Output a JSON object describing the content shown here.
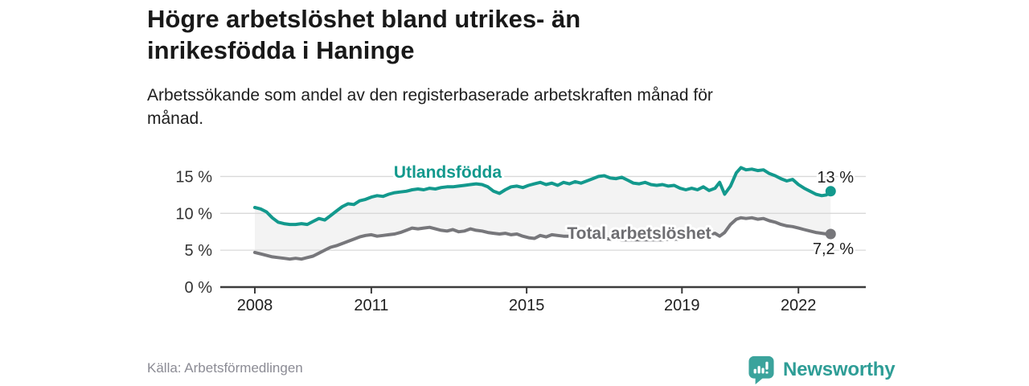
{
  "header": {
    "title_lines": [
      "Högre arbetslöshet bland utrikes- än",
      "inrikesfödda i Haninge"
    ],
    "subtitle_lines": [
      "Arbetssökande som andel av den registerbaserade arbetskraften månad för",
      "månad."
    ]
  },
  "footer": {
    "source": "Källa: Arbetsförmedlingen",
    "logo_text": "Newsworthy",
    "logo_icon": "bar-chart-pin-icon",
    "logo_color": "#2e9d96"
  },
  "chart_data": {
    "type": "line",
    "title": "Högre arbetslöshet bland utrikes- än inrikesfödda i Haninge",
    "xlabel": "",
    "ylabel": "",
    "grid": "horizontal",
    "legend": "inline-labels",
    "ylim": [
      0,
      17.5
    ],
    "yticks": [
      0,
      5,
      10,
      15
    ],
    "ytick_labels": [
      "0 %",
      "5 %",
      "10 %",
      "15 %"
    ],
    "xticks": [
      2008,
      2011,
      2015,
      2019,
      2022
    ],
    "xtick_labels": [
      "2008",
      "2011",
      "2015",
      "2019",
      "2022"
    ],
    "band_fill": "#f3f3f3",
    "axis_color": "#3c3c3c",
    "grid_color": "#d9d9d9",
    "tick_text_color": "#1f1f1f",
    "x": [
      2008.0,
      2008.15,
      2008.3,
      2008.45,
      2008.6,
      2008.75,
      2008.9,
      2009.05,
      2009.2,
      2009.35,
      2009.5,
      2009.65,
      2009.8,
      2009.95,
      2010.1,
      2010.25,
      2010.4,
      2010.55,
      2010.7,
      2010.85,
      2011.0,
      2011.15,
      2011.3,
      2011.45,
      2011.6,
      2011.75,
      2011.9,
      2012.05,
      2012.2,
      2012.35,
      2012.5,
      2012.65,
      2012.8,
      2012.95,
      2013.1,
      2013.25,
      2013.4,
      2013.55,
      2013.7,
      2013.85,
      2014.0,
      2014.15,
      2014.3,
      2014.45,
      2014.6,
      2014.75,
      2014.9,
      2015.05,
      2015.2,
      2015.35,
      2015.5,
      2015.65,
      2015.8,
      2015.95,
      2016.1,
      2016.25,
      2016.4,
      2016.55,
      2016.7,
      2016.85,
      2017.0,
      2017.15,
      2017.3,
      2017.45,
      2017.6,
      2017.75,
      2017.9,
      2018.05,
      2018.2,
      2018.35,
      2018.5,
      2018.65,
      2018.8,
      2018.95,
      2019.1,
      2019.25,
      2019.4,
      2019.55,
      2019.7,
      2019.85,
      2019.97,
      2020.1,
      2020.25,
      2020.4,
      2020.52,
      2020.65,
      2020.8,
      2020.95,
      2021.1,
      2021.25,
      2021.4,
      2021.55,
      2021.7,
      2021.85,
      2022.0,
      2022.15,
      2022.3,
      2022.45,
      2022.6,
      2022.72,
      2022.83
    ],
    "series": [
      {
        "name": "Utlandsfödda",
        "color": "#13998d",
        "end_label": "13 %",
        "end_value": 13.0,
        "values": [
          10.8,
          10.6,
          10.2,
          9.4,
          8.8,
          8.6,
          8.5,
          8.5,
          8.6,
          8.5,
          8.9,
          9.3,
          9.1,
          9.7,
          10.3,
          10.9,
          11.3,
          11.2,
          11.7,
          11.9,
          12.2,
          12.4,
          12.3,
          12.6,
          12.8,
          12.9,
          13.0,
          13.2,
          13.3,
          13.2,
          13.4,
          13.3,
          13.5,
          13.6,
          13.6,
          13.7,
          13.8,
          13.9,
          14.0,
          13.9,
          13.6,
          13.0,
          12.7,
          13.2,
          13.6,
          13.7,
          13.5,
          13.8,
          14.0,
          14.2,
          13.9,
          14.1,
          13.8,
          14.2,
          14.0,
          14.3,
          14.1,
          14.4,
          14.7,
          15.0,
          15.1,
          14.8,
          14.7,
          14.9,
          14.5,
          14.1,
          14.0,
          14.2,
          13.9,
          13.8,
          13.9,
          13.7,
          13.8,
          13.4,
          13.2,
          13.4,
          13.2,
          13.6,
          13.1,
          13.4,
          14.2,
          12.6,
          13.7,
          15.5,
          16.2,
          15.9,
          16.0,
          15.8,
          15.9,
          15.4,
          15.1,
          14.7,
          14.4,
          14.6,
          13.9,
          13.4,
          13.0,
          12.6,
          12.4,
          12.5,
          13.0
        ]
      },
      {
        "name": "Total arbetslöshet",
        "color": "#77777b",
        "end_label": "7,2 %",
        "end_value": 7.2,
        "values": [
          4.7,
          4.5,
          4.3,
          4.1,
          4.0,
          3.9,
          3.8,
          3.9,
          3.8,
          4.0,
          4.2,
          4.6,
          5.0,
          5.4,
          5.6,
          5.9,
          6.2,
          6.5,
          6.8,
          7.0,
          7.1,
          6.9,
          7.0,
          7.1,
          7.2,
          7.4,
          7.7,
          8.0,
          7.9,
          8.0,
          8.1,
          7.9,
          7.7,
          7.6,
          7.8,
          7.5,
          7.6,
          7.9,
          7.7,
          7.6,
          7.4,
          7.3,
          7.2,
          7.3,
          7.1,
          7.2,
          6.9,
          6.7,
          6.6,
          7.0,
          6.8,
          7.1,
          7.0,
          6.9,
          6.9,
          6.8,
          6.8,
          6.7,
          6.7,
          6.6,
          6.6,
          6.5,
          6.5,
          6.4,
          6.4,
          6.4,
          6.4,
          6.4,
          6.4,
          6.4,
          6.4,
          6.5,
          6.5,
          6.5,
          6.6,
          6.6,
          6.7,
          6.8,
          7.1,
          7.3,
          6.9,
          7.4,
          8.5,
          9.2,
          9.4,
          9.3,
          9.4,
          9.2,
          9.3,
          9.0,
          8.8,
          8.5,
          8.3,
          8.2,
          8.0,
          7.8,
          7.6,
          7.4,
          7.3,
          7.2,
          7.2
        ]
      }
    ]
  }
}
